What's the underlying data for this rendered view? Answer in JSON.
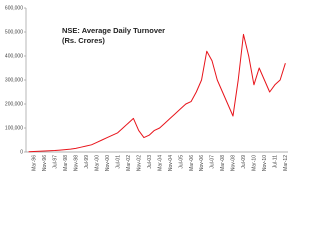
{
  "chart_data": {
    "type": "line",
    "title": "NSE: Average Daily Turnover",
    "subtitle": "(Rs. Crores)",
    "color": "#e8141b",
    "categories": [
      null,
      "Mar-96",
      null,
      "Nov-96",
      null,
      "Jul-97",
      null,
      "Mar-98",
      null,
      "Nov-98",
      null,
      "Jul-99",
      null,
      "Mar-00",
      null,
      "Nov-00",
      null,
      "Jul-01",
      null,
      "Mar-02",
      null,
      "Nov-02",
      null,
      "Jul-03",
      null,
      "Mar-04",
      null,
      "Nov-04",
      null,
      "Jul-05",
      null,
      "Mar-06",
      null,
      "Nov-06",
      null,
      "Jul-07",
      null,
      "Mar-08",
      null,
      "Nov-08",
      null,
      "Jul-09",
      null,
      "Mar-10",
      null,
      "Nov-10",
      null,
      "Jul-11",
      null,
      "Mar-12"
    ],
    "values": [
      1000,
      2000,
      3000,
      4000,
      5000,
      6000,
      8000,
      10000,
      12000,
      15000,
      20000,
      25000,
      30000,
      40000,
      50000,
      60000,
      70000,
      80000,
      100000,
      120000,
      140000,
      90000,
      60000,
      70000,
      90000,
      100000,
      120000,
      140000,
      160000,
      180000,
      200000,
      210000,
      250000,
      300000,
      420000,
      380000,
      300000,
      250000,
      200000,
      150000,
      300000,
      490000,
      400000,
      280000,
      350000,
      300000,
      250000,
      280000,
      300000,
      370000
    ],
    "ylim": [
      0,
      600000
    ],
    "yticks": [
      0,
      {
        "value": 100000,
        "label": "100,000"
      },
      {
        "value": 200000,
        "label": "200,000"
      },
      {
        "value": 300000,
        "label": "300,000"
      },
      {
        "value": 400000,
        "label": "400,000"
      },
      {
        "value": 500000,
        "label": "500,000"
      },
      {
        "value": 600000,
        "label": "600,000"
      }
    ]
  }
}
